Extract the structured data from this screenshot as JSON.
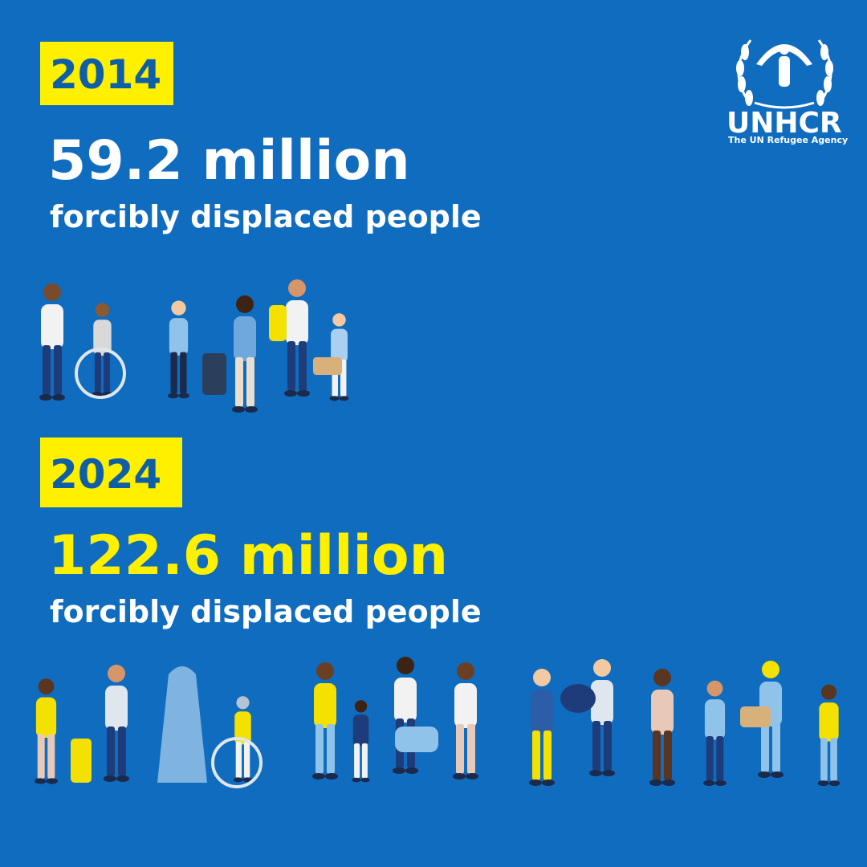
{
  "logo": {
    "name": "UNHCR",
    "tagline": "The UN Refugee Agency"
  },
  "sections": [
    {
      "year": "2014",
      "figure": "59.2 million",
      "label": "forcibly displaced people"
    },
    {
      "year": "2024",
      "figure": "122.6 million",
      "label": "forcibly displaced people"
    }
  ]
}
